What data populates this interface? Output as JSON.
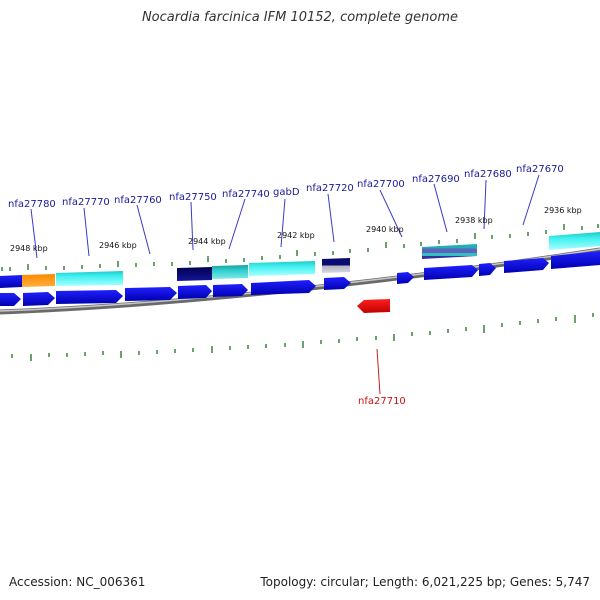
{
  "title": "Nocardia farcinica IFM 10152, complete genome",
  "footer": {
    "accession": "Accession: NC_006361",
    "summary": "Topology: circular; Length: 6,021,225 bp; Genes: 5,747"
  },
  "colors": {
    "backbone": "#8a8a8a",
    "cds_forward_top": "#1010f0",
    "cds_forward_bottom": "#0000c0",
    "cds_cyan": "#33e6e6",
    "cds_teal": "#20b8b8",
    "cds_navy": "#0a0a7a",
    "cds_orange": "#ff9a1a",
    "cds_reverse": "#ee0000",
    "tick": "#2a7a2a",
    "label_blue": "#1a1a9a",
    "label_red": "#cc1111",
    "leader_blue": "#3a3ac8",
    "leader_red": "#cc2222"
  },
  "scale_labels": [
    {
      "text": "2948 kbp",
      "id": "2948"
    },
    {
      "text": "2946 kbp",
      "id": "2946"
    },
    {
      "text": "2944 kbp",
      "id": "2944"
    },
    {
      "text": "2942 kbp",
      "id": "2942"
    },
    {
      "text": "2940 kbp",
      "id": "2940"
    },
    {
      "text": "2938 kbp",
      "id": "2938"
    },
    {
      "text": "2936 kbp",
      "id": "2936"
    }
  ],
  "gene_labels": [
    {
      "text": "nfa27780",
      "strand": "forward"
    },
    {
      "text": "nfa27770",
      "strand": "forward"
    },
    {
      "text": "nfa27760",
      "strand": "forward"
    },
    {
      "text": "nfa27750",
      "strand": "forward"
    },
    {
      "text": "nfa27740",
      "strand": "forward"
    },
    {
      "text": "gabD",
      "strand": "forward"
    },
    {
      "text": "nfa27720",
      "strand": "forward"
    },
    {
      "text": "nfa27700",
      "strand": "forward"
    },
    {
      "text": "nfa27690",
      "strand": "forward"
    },
    {
      "text": "nfa27680",
      "strand": "forward"
    },
    {
      "text": "nfa27670",
      "strand": "forward"
    },
    {
      "text": "nfa27710",
      "strand": "reverse"
    }
  ]
}
